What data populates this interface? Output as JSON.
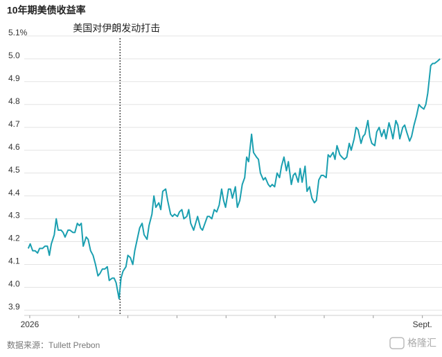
{
  "chart_data": {
    "type": "line",
    "title": "10年期美债收益率",
    "annotation": {
      "text": "美国对伊朗发动打击",
      "x": 1.84
    },
    "source": "数据来源：Tullett Prebon",
    "watermark": "格隆汇",
    "xlim": [
      -0.14,
      8.4
    ],
    "xticks": [
      {
        "value": 0,
        "label": "2026"
      },
      1,
      2,
      3,
      4,
      5,
      6,
      7,
      {
        "value": 8,
        "label": "Sept."
      }
    ],
    "ylim": [
      3.88,
      5.13
    ],
    "yticks": [
      3.9,
      {
        "value": 4,
        "label": "4.0"
      },
      4.1,
      4.2,
      4.3,
      4.4,
      4.5,
      4.6,
      4.7,
      4.8,
      4.9,
      {
        "value": 5,
        "label": "5.0"
      },
      {
        "value": 5.1,
        "label": "5.1%"
      }
    ],
    "grid": true,
    "series": [
      {
        "color": "#1a9fb0",
        "x": [
          -0.03,
          0.01,
          0.06,
          0.11,
          0.16,
          0.2,
          0.26,
          0.31,
          0.36,
          0.4,
          0.44,
          0.5,
          0.54,
          0.58,
          0.64,
          0.68,
          0.72,
          0.78,
          0.82,
          0.88,
          0.92,
          0.97,
          1.01,
          1.05,
          1.09,
          1.15,
          1.19,
          1.24,
          1.29,
          1.34,
          1.39,
          1.43,
          1.48,
          1.53,
          1.58,
          1.62,
          1.68,
          1.72,
          1.76,
          1.82,
          1.86,
          1.9,
          1.96,
          2,
          2.05,
          2.1,
          2.14,
          2.19,
          2.24,
          2.29,
          2.33,
          2.39,
          2.43,
          2.49,
          2.53,
          2.57,
          2.63,
          2.67,
          2.71,
          2.77,
          2.81,
          2.87,
          2.91,
          2.95,
          3.01,
          3.05,
          3.1,
          3.14,
          3.2,
          3.24,
          3.28,
          3.34,
          3.38,
          3.42,
          3.48,
          3.52,
          3.57,
          3.62,
          3.66,
          3.71,
          3.76,
          3.81,
          3.86,
          3.91,
          3.95,
          3.99,
          4.05,
          4.09,
          4.13,
          4.19,
          4.23,
          4.28,
          4.33,
          4.38,
          4.42,
          4.46,
          4.52,
          4.56,
          4.62,
          4.66,
          4.7,
          4.76,
          4.8,
          4.86,
          4.9,
          4.94,
          4.99,
          5.04,
          5.09,
          5.13,
          5.18,
          5.23,
          5.27,
          5.33,
          5.37,
          5.41,
          5.47,
          5.51,
          5.55,
          5.61,
          5.65,
          5.7,
          5.75,
          5.8,
          5.84,
          5.89,
          5.94,
          5.98,
          6.04,
          6.08,
          6.12,
          6.18,
          6.22,
          6.26,
          6.32,
          6.36,
          6.41,
          6.46,
          6.51,
          6.55,
          6.61,
          6.65,
          6.69,
          6.75,
          6.79,
          6.83,
          6.89,
          6.93,
          6.97,
          7.03,
          7.07,
          7.12,
          7.17,
          7.22,
          7.26,
          7.32,
          7.36,
          7.4,
          7.46,
          7.5,
          7.54,
          7.6,
          7.64,
          7.68,
          7.74,
          7.78,
          7.83,
          7.88,
          7.93,
          7.97,
          8.03,
          8.07,
          8.11,
          8.17,
          8.21,
          8.25,
          8.31,
          8.36
        ],
        "values": [
          4.17,
          4.19,
          4.16,
          4.16,
          4.15,
          4.17,
          4.17,
          4.18,
          4.18,
          4.14,
          4.19,
          4.23,
          4.3,
          4.25,
          4.25,
          4.24,
          4.22,
          4.25,
          4.25,
          4.24,
          4.24,
          4.28,
          4.27,
          4.28,
          4.18,
          4.22,
          4.21,
          4.16,
          4.14,
          4.1,
          4.05,
          4.06,
          4.08,
          4.08,
          4.09,
          4.03,
          4.04,
          4.04,
          4.02,
          3.95,
          4.04,
          4.07,
          4.09,
          4.14,
          4.13,
          4.1,
          4.16,
          4.21,
          4.26,
          4.28,
          4.23,
          4.21,
          4.27,
          4.32,
          4.4,
          4.35,
          4.37,
          4.34,
          4.42,
          4.43,
          4.38,
          4.32,
          4.31,
          4.32,
          4.31,
          4.33,
          4.34,
          4.3,
          4.31,
          4.34,
          4.28,
          4.25,
          4.28,
          4.31,
          4.26,
          4.25,
          4.28,
          4.31,
          4.31,
          4.3,
          4.34,
          4.33,
          4.36,
          4.43,
          4.38,
          4.35,
          4.43,
          4.43,
          4.39,
          4.44,
          4.35,
          4.38,
          4.45,
          4.48,
          4.57,
          4.55,
          4.67,
          4.59,
          4.57,
          4.56,
          4.5,
          4.47,
          4.48,
          4.45,
          4.44,
          4.45,
          4.44,
          4.5,
          4.48,
          4.53,
          4.57,
          4.51,
          4.55,
          4.45,
          4.49,
          4.5,
          4.46,
          4.52,
          4.46,
          4.53,
          4.42,
          4.44,
          4.39,
          4.37,
          4.38,
          4.47,
          4.49,
          4.49,
          4.48,
          4.58,
          4.57,
          4.59,
          4.56,
          4.62,
          4.58,
          4.57,
          4.56,
          4.57,
          4.63,
          4.6,
          4.65,
          4.7,
          4.69,
          4.63,
          4.66,
          4.67,
          4.73,
          4.66,
          4.63,
          4.62,
          4.68,
          4.7,
          4.66,
          4.69,
          4.65,
          4.72,
          4.69,
          4.65,
          4.73,
          4.71,
          4.65,
          4.7,
          4.71,
          4.68,
          4.64,
          4.66,
          4.71,
          4.75,
          4.8,
          4.79,
          4.78,
          4.8,
          4.85,
          4.97,
          4.98,
          4.98,
          4.99,
          5.0
        ]
      }
    ]
  }
}
